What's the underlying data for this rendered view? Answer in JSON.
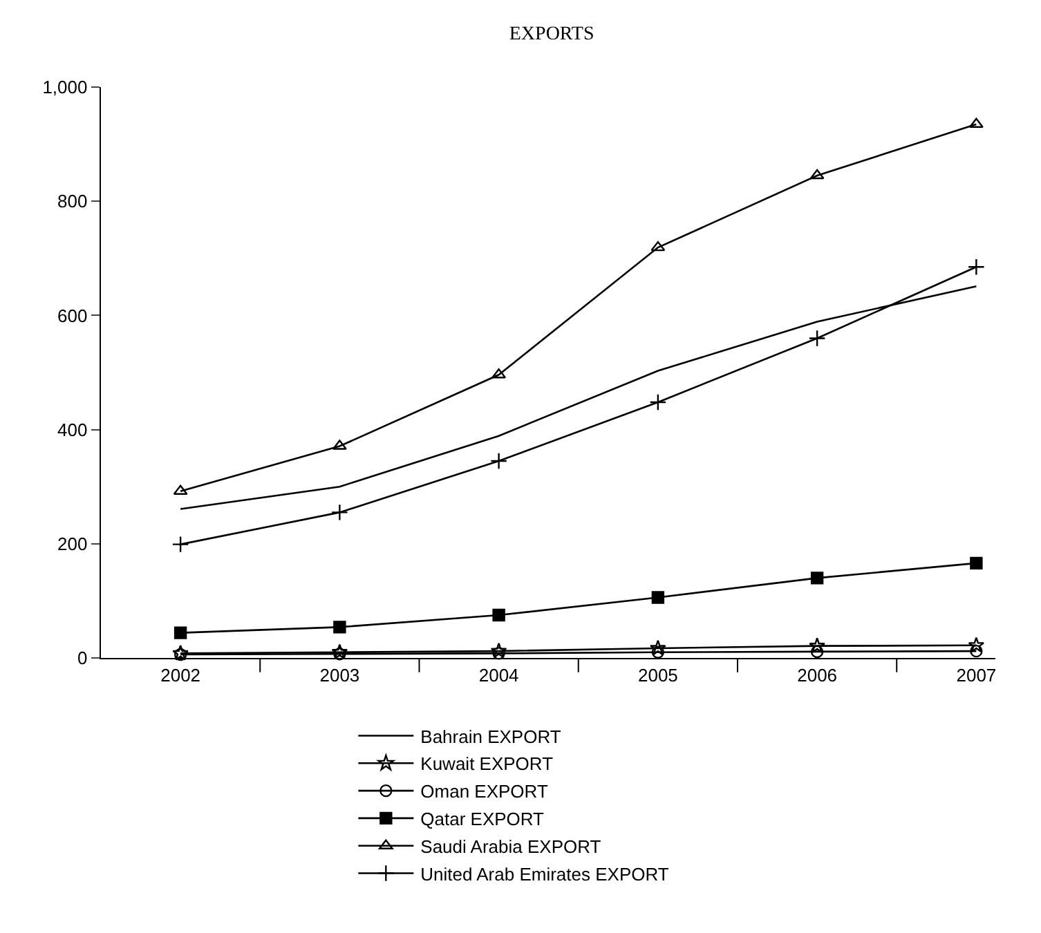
{
  "chart_data": {
    "type": "line",
    "title": "EXPORTS",
    "categories": [
      "2002",
      "2003",
      "2004",
      "2005",
      "2006",
      "2007"
    ],
    "ylim": [
      0,
      1000
    ],
    "yticks": [
      0,
      200,
      400,
      600,
      800,
      {
        "value": 1000,
        "label": "1,000"
      }
    ],
    "legend": "bottom",
    "line_style": "solid",
    "series": [
      {
        "name": "Bahrain EXPORT",
        "color": "#000000",
        "marker": "none",
        "values": [
          261,
          300,
          389,
          503,
          589,
          651
        ]
      },
      {
        "name": "Kuwait EXPORT",
        "color": "#000000",
        "marker": "star",
        "values": [
          8,
          10,
          12,
          17,
          21,
          22
        ]
      },
      {
        "name": "Oman EXPORT",
        "color": "#000000",
        "marker": "circle",
        "values": [
          6,
          7,
          8,
          10,
          11,
          12
        ]
      },
      {
        "name": "Qatar EXPORT",
        "color": "#000000",
        "marker": "square",
        "values": [
          44,
          54,
          75,
          106,
          140,
          166
        ]
      },
      {
        "name": "Saudi Arabia EXPORT",
        "color": "#000000",
        "marker": "triangle",
        "values": [
          292,
          371,
          496,
          719,
          845,
          935
        ]
      },
      {
        "name": "United Arab Emirates EXPORT",
        "color": "#000000",
        "marker": "cross",
        "values": [
          199,
          255,
          345,
          448,
          560,
          685
        ]
      }
    ]
  }
}
